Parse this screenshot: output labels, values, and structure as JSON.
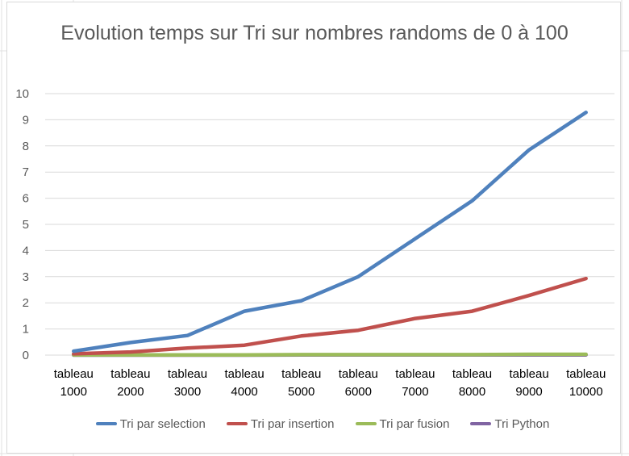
{
  "chart_data": {
    "type": "line",
    "title": "Evolution temps sur Tri sur nombres randoms de 0 à 100",
    "xlabel": "",
    "ylabel": "",
    "ylim": [
      0,
      10
    ],
    "yticks": [
      "0",
      "1",
      "2",
      "3",
      "4",
      "5",
      "6",
      "7",
      "8",
      "9",
      "10"
    ],
    "categories": [
      [
        "tableau",
        "1000"
      ],
      [
        "tableau",
        "2000"
      ],
      [
        "tableau",
        "3000"
      ],
      [
        "tableau",
        "4000"
      ],
      [
        "tableau",
        "5000"
      ],
      [
        "tableau",
        "6000"
      ],
      [
        "tableau",
        "7000"
      ],
      [
        "tableau",
        "8000"
      ],
      [
        "tableau",
        "9000"
      ],
      [
        "tableau",
        "10000"
      ]
    ],
    "grid": true,
    "legend_position": "bottom",
    "series": [
      {
        "name": "Tri par selection",
        "color": "#4f81bd",
        "values": [
          0.15,
          0.48,
          0.75,
          1.68,
          2.08,
          3.0,
          4.45,
          5.9,
          7.85,
          9.28
        ]
      },
      {
        "name": "Tri par insertion",
        "color": "#c0504d",
        "values": [
          0.05,
          0.12,
          0.27,
          0.38,
          0.73,
          0.95,
          1.4,
          1.68,
          2.28,
          2.93
        ]
      },
      {
        "name": "Tri par fusion",
        "color": "#9bbb59",
        "values": [
          0.01,
          0.01,
          0.01,
          0.01,
          0.02,
          0.02,
          0.02,
          0.02,
          0.03,
          0.03
        ]
      },
      {
        "name": "Tri Python",
        "color": "#8064a2",
        "values": [
          0.0,
          0.0,
          0.0,
          0.0,
          0.01,
          0.01,
          0.01,
          0.01,
          0.01,
          0.01
        ]
      }
    ]
  }
}
